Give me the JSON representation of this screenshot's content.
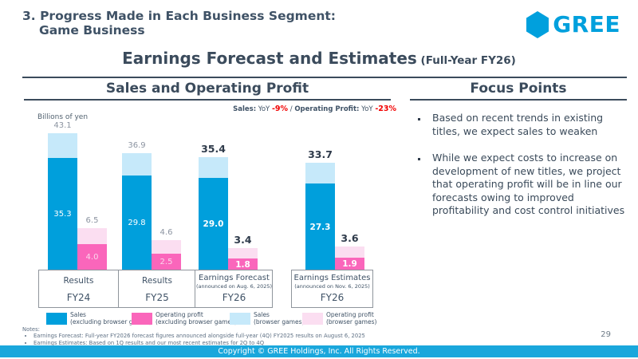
{
  "slide": {
    "kicker_line1": "3. Progress Made in Each Business Segment:",
    "kicker_line2": "Game Business",
    "title": "Earnings Forecast and Estimates",
    "title_suffix": " (Full-Year FY26)",
    "logo_text": "GREE",
    "page_number": "29",
    "footer_text": "Copyright © GREE Holdings, Inc. All Rights Reserved."
  },
  "left_panel": {
    "section_title": "Sales and Operating Profit",
    "unit_label": "Billions of yen",
    "yoy_note": {
      "sales_label": "Sales:",
      "sales_yoy": " YoY ",
      "sales_value": "-9%",
      "separator": " / ",
      "op_label": "Operating Profit:",
      "op_yoy": " YoY ",
      "op_value": "-23%"
    },
    "notes_heading": "Notes:",
    "notes": [
      "Earnings Forecast: Full-year FY2026 forecast figures announced alongside full-year (4Q) FY2025 results on August 6, 2025",
      "Earnings Estimates: Based on 1Q results and our most recent estimates for 2Q to 4Q"
    ]
  },
  "right_panel": {
    "section_title": "Focus Points",
    "bullets": [
      "Based on recent trends in existing titles, we expect sales to weaken",
      "While we expect costs to increase on development of new titles, we project that operating profit will be in line our forecasts owing to improved profitability and cost control initiatives"
    ]
  },
  "chart_data": {
    "type": "bar",
    "title": "Sales and Operating Profit",
    "unit_label": "Billions of yen",
    "categories": [
      "FY24",
      "FY25",
      "FY26",
      "FY26"
    ],
    "groups": [
      {
        "period_label": "Results",
        "announced": "",
        "year": "FY24",
        "sales_total": 43.1,
        "sales_excl_browser": 35.3,
        "sales_browser": 7.8,
        "op_total": 6.5,
        "op_excl_browser": 4.0,
        "op_browser": 2.5,
        "emphasized": false
      },
      {
        "period_label": "Results",
        "announced": "",
        "year": "FY25",
        "sales_total": 36.9,
        "sales_excl_browser": 29.8,
        "sales_browser": 7.1,
        "op_total": 4.6,
        "op_excl_browser": 2.5,
        "op_browser": 2.1,
        "emphasized": false
      },
      {
        "period_label": "Earnings Forecast",
        "announced": "(announced on Aug. 6, 2025)",
        "year": "FY26",
        "sales_total": 35.4,
        "sales_excl_browser": 29.0,
        "sales_browser": 6.4,
        "op_total": 3.4,
        "op_excl_browser": 1.8,
        "op_browser": 1.6,
        "emphasized": true
      },
      {
        "period_label": "Earnings Estimates",
        "announced": "(announced on Nov. 6, 2025)",
        "year": "FY26",
        "sales_total": 33.7,
        "sales_excl_browser": 27.3,
        "sales_browser": 6.4,
        "op_total": 3.6,
        "op_excl_browser": 1.9,
        "op_browser": 1.7,
        "emphasized": true
      }
    ],
    "legend": [
      {
        "label": "Sales",
        "sub": "(excluding browser games)",
        "color": "#009fdc"
      },
      {
        "label": "Operating profit",
        "sub": "(excluding browser games)",
        "color": "#fa66bb"
      },
      {
        "label": "Sales",
        "sub": "(browser games)",
        "color": "#c6e9fa"
      },
      {
        "label": "Operating profit",
        "sub": "(browser games)",
        "color": "#fbdef1"
      }
    ],
    "yoy_sales": "-9%",
    "yoy_operating_profit": "-23%"
  },
  "colors": {
    "sales_excl_browser": "#009fdc",
    "sales_browser": "#c6e9fa",
    "op_excl_browser": "#fa66bb",
    "op_browser": "#fbdef1",
    "accent_dark": "#3b4b5c",
    "negative_red": "#f20000",
    "footer_bar": "#1aa7dc",
    "logo_blue": "#00a0dd"
  }
}
